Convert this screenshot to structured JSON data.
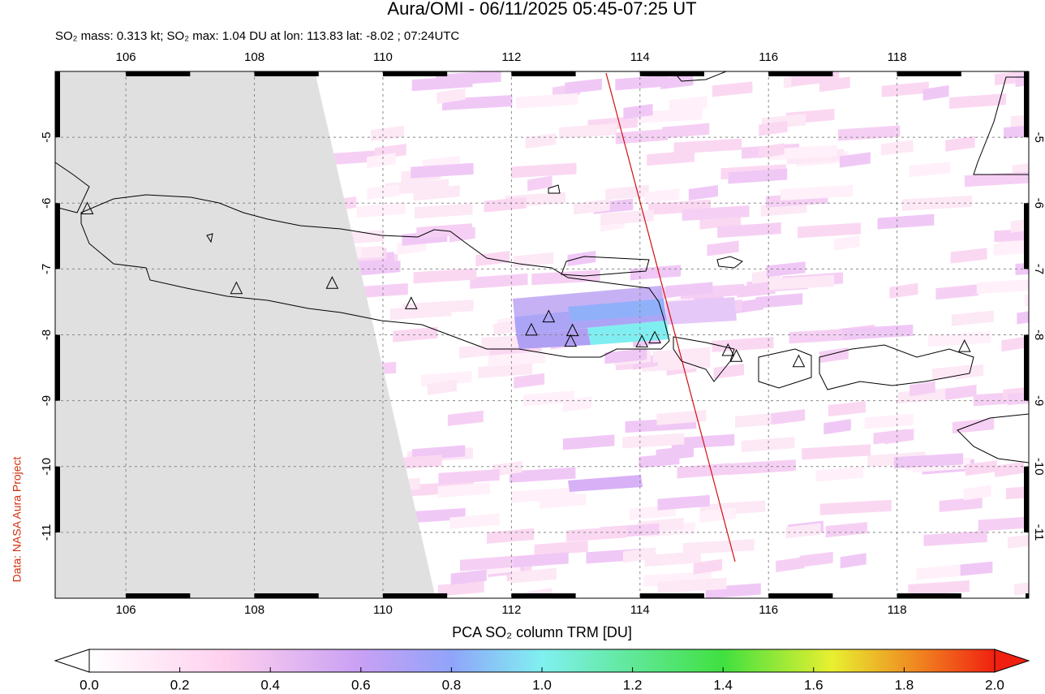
{
  "title": "Aura/OMI - 06/11/2025 05:45-07:25 UT",
  "subtitle": "SO₂ mass: 0.313 kt; SO₂ max: 1.04 DU at lon: 113.83 lat: -8.02 ; 07:24UTC",
  "side_label": "Data: NASA Aura Project",
  "map": {
    "lon_range": [
      104.9,
      120.05
    ],
    "lat_range": [
      -12,
      -4
    ],
    "lon_ticks": [
      106,
      108,
      110,
      112,
      114,
      116,
      118
    ],
    "lat_ticks": [
      -5,
      -6,
      -7,
      -8,
      -9,
      -10,
      -11
    ],
    "volcanoes": [
      [
        105.4,
        -6.09
      ],
      [
        107.72,
        -7.3
      ],
      [
        109.21,
        -7.22
      ],
      [
        110.44,
        -7.53
      ],
      [
        112.31,
        -7.93
      ],
      [
        112.58,
        -7.73
      ],
      [
        112.95,
        -7.94
      ],
      [
        112.92,
        -8.1
      ],
      [
        114.03,
        -8.11
      ],
      [
        114.23,
        -8.05
      ],
      [
        115.37,
        -8.24
      ],
      [
        115.5,
        -8.33
      ],
      [
        116.47,
        -8.41
      ],
      [
        119.05,
        -8.18
      ]
    ]
  },
  "colorbar": {
    "label": "PCA SO₂ column TRM [DU]",
    "range": [
      0,
      2
    ],
    "ticks": [
      {
        "value": 0,
        "label": "0.0"
      },
      {
        "value": 0.2,
        "label": "0.2"
      },
      {
        "value": 0.4,
        "label": "0.4"
      },
      {
        "value": 0.6,
        "label": "0.6"
      },
      {
        "value": 0.8,
        "label": "0.8"
      },
      {
        "value": 1,
        "label": "1.0"
      },
      {
        "value": 1.2,
        "label": "1.2"
      },
      {
        "value": 1.4,
        "label": "1.4"
      },
      {
        "value": 1.6,
        "label": "1.6"
      },
      {
        "value": 1.8,
        "label": "1.8"
      },
      {
        "value": 2,
        "label": "2.0"
      }
    ]
  }
}
